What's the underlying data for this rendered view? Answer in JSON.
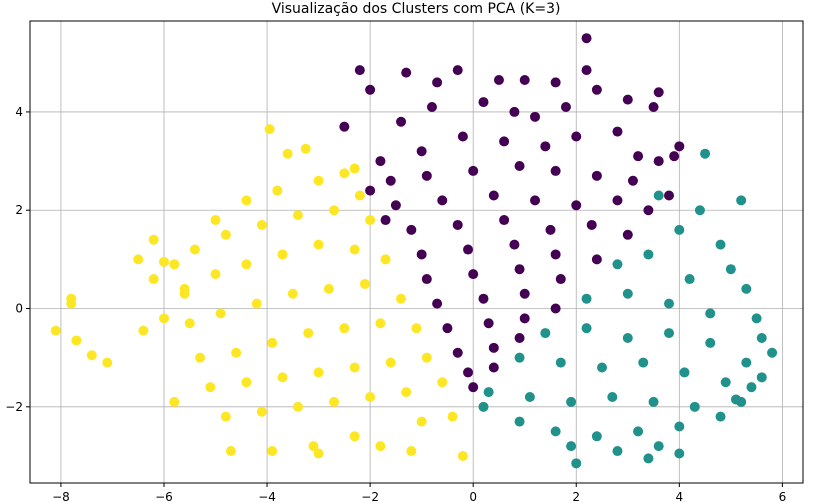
{
  "chart_data": {
    "type": "scatter",
    "title": "Visualização dos Clusters com PCA (K=3)",
    "xlabel": "",
    "ylabel": "",
    "xlim": [
      -8.6,
      6.4
    ],
    "ylim": [
      -3.55,
      5.85
    ],
    "x_ticks": [
      -8,
      -6,
      -4,
      -2,
      0,
      2,
      4,
      6
    ],
    "x_tick_labels": [
      "−8",
      "−6",
      "−4",
      "−2",
      "0",
      "2",
      "4",
      "6"
    ],
    "y_ticks": [
      -2,
      0,
      2,
      4
    ],
    "y_tick_labels": [
      "−2",
      "0",
      "2",
      "4"
    ],
    "grid": true,
    "series": [
      {
        "color": "#440154",
        "points": [
          [
            -2.2,
            4.85
          ],
          [
            -2.0,
            4.45
          ],
          [
            -1.3,
            4.8
          ],
          [
            -0.7,
            4.6
          ],
          [
            -0.3,
            4.85
          ],
          [
            0.5,
            4.65
          ],
          [
            1.0,
            4.65
          ],
          [
            1.6,
            4.6
          ],
          [
            2.2,
            4.85
          ],
          [
            2.2,
            5.5
          ],
          [
            -2.5,
            3.7
          ],
          [
            2.4,
            4.45
          ],
          [
            3.0,
            4.25
          ],
          [
            3.5,
            4.1
          ],
          [
            3.6,
            4.4
          ],
          [
            4.0,
            3.3
          ],
          [
            -1.4,
            3.8
          ],
          [
            -0.8,
            4.1
          ],
          [
            0.2,
            4.2
          ],
          [
            0.8,
            4.0
          ],
          [
            1.2,
            3.9
          ],
          [
            1.8,
            4.1
          ],
          [
            -1.8,
            3.0
          ],
          [
            -1.0,
            3.2
          ],
          [
            -0.2,
            3.5
          ],
          [
            0.6,
            3.4
          ],
          [
            1.4,
            3.3
          ],
          [
            2.0,
            3.5
          ],
          [
            2.8,
            3.6
          ],
          [
            3.2,
            3.1
          ],
          [
            3.6,
            3.0
          ],
          [
            -1.6,
            2.6
          ],
          [
            -0.9,
            2.7
          ],
          [
            0.0,
            2.8
          ],
          [
            0.9,
            2.9
          ],
          [
            1.6,
            2.8
          ],
          [
            2.4,
            2.7
          ],
          [
            3.1,
            2.6
          ],
          [
            -1.5,
            2.1
          ],
          [
            -0.6,
            2.2
          ],
          [
            0.4,
            2.3
          ],
          [
            1.2,
            2.2
          ],
          [
            2.0,
            2.1
          ],
          [
            2.8,
            2.2
          ],
          [
            3.4,
            2.0
          ],
          [
            -1.2,
            1.6
          ],
          [
            -0.3,
            1.7
          ],
          [
            0.6,
            1.8
          ],
          [
            1.5,
            1.6
          ],
          [
            2.3,
            1.7
          ],
          [
            3.0,
            1.5
          ],
          [
            -1.0,
            1.1
          ],
          [
            -0.1,
            1.2
          ],
          [
            0.8,
            1.3
          ],
          [
            1.6,
            1.1
          ],
          [
            2.4,
            1.0
          ],
          [
            -0.9,
            0.6
          ],
          [
            0.0,
            0.7
          ],
          [
            0.9,
            0.8
          ],
          [
            1.7,
            0.6
          ],
          [
            -0.7,
            0.1
          ],
          [
            0.2,
            0.2
          ],
          [
            1.0,
            0.3
          ],
          [
            1.6,
            0.0
          ],
          [
            -0.5,
            -0.4
          ],
          [
            0.3,
            -0.3
          ],
          [
            1.0,
            -0.2
          ],
          [
            -0.3,
            -0.9
          ],
          [
            0.4,
            -0.8
          ],
          [
            0.9,
            -0.6
          ],
          [
            -0.1,
            -1.3
          ],
          [
            0.4,
            -1.2
          ],
          [
            0.0,
            -1.6
          ],
          [
            -2.0,
            2.4
          ],
          [
            -1.7,
            1.8
          ],
          [
            3.8,
            2.3
          ],
          [
            3.9,
            3.1
          ]
        ]
      },
      {
        "color": "#21918c",
        "points": [
          [
            4.5,
            3.15
          ],
          [
            4.4,
            2.0
          ],
          [
            5.2,
            2.2
          ],
          [
            3.6,
            2.3
          ],
          [
            4.0,
            1.6
          ],
          [
            4.8,
            1.3
          ],
          [
            5.0,
            0.8
          ],
          [
            2.8,
            0.9
          ],
          [
            3.4,
            1.1
          ],
          [
            4.2,
            0.6
          ],
          [
            5.3,
            0.4
          ],
          [
            5.5,
            -0.2
          ],
          [
            2.2,
            0.2
          ],
          [
            3.0,
            0.3
          ],
          [
            3.8,
            0.1
          ],
          [
            4.6,
            -0.1
          ],
          [
            5.8,
            -0.9
          ],
          [
            5.6,
            -0.6
          ],
          [
            1.4,
            -0.5
          ],
          [
            2.2,
            -0.4
          ],
          [
            3.0,
            -0.6
          ],
          [
            3.8,
            -0.5
          ],
          [
            4.6,
            -0.7
          ],
          [
            5.3,
            -1.1
          ],
          [
            0.9,
            -1.0
          ],
          [
            1.7,
            -1.1
          ],
          [
            2.5,
            -1.2
          ],
          [
            3.3,
            -1.1
          ],
          [
            4.1,
            -1.3
          ],
          [
            4.9,
            -1.5
          ],
          [
            5.4,
            -1.6
          ],
          [
            0.3,
            -1.7
          ],
          [
            1.1,
            -1.8
          ],
          [
            1.9,
            -1.9
          ],
          [
            2.7,
            -1.8
          ],
          [
            3.5,
            -1.9
          ],
          [
            4.3,
            -2.0
          ],
          [
            5.2,
            -1.9
          ],
          [
            0.2,
            -2.0
          ],
          [
            0.9,
            -2.3
          ],
          [
            1.6,
            -2.5
          ],
          [
            2.4,
            -2.6
          ],
          [
            3.2,
            -2.5
          ],
          [
            4.0,
            -2.4
          ],
          [
            4.8,
            -2.2
          ],
          [
            1.9,
            -2.8
          ],
          [
            2.8,
            -2.9
          ],
          [
            3.6,
            -2.8
          ],
          [
            2.0,
            -3.15
          ],
          [
            3.4,
            -3.05
          ],
          [
            4.0,
            -2.95
          ],
          [
            5.1,
            -1.85
          ],
          [
            5.6,
            -1.4
          ]
        ]
      },
      {
        "color": "#fde725",
        "points": [
          [
            -8.1,
            -0.45
          ],
          [
            -7.8,
            0.2
          ],
          [
            -7.8,
            0.1
          ],
          [
            -7.7,
            -0.65
          ],
          [
            -7.4,
            -0.95
          ],
          [
            -7.1,
            -1.1
          ],
          [
            -6.5,
            1.0
          ],
          [
            -6.2,
            1.4
          ],
          [
            -6.4,
            -0.45
          ],
          [
            -6.2,
            0.6
          ],
          [
            -6.0,
            0.95
          ],
          [
            -6.0,
            -0.2
          ],
          [
            -5.8,
            0.9
          ],
          [
            -5.6,
            0.3
          ],
          [
            -5.8,
            -1.9
          ],
          [
            -3.95,
            3.65
          ],
          [
            -3.6,
            3.15
          ],
          [
            -3.25,
            3.25
          ],
          [
            -2.5,
            2.75
          ],
          [
            -2.3,
            2.85
          ],
          [
            -5.0,
            1.8
          ],
          [
            -4.4,
            2.2
          ],
          [
            -3.8,
            2.4
          ],
          [
            -3.0,
            2.6
          ],
          [
            -2.2,
            2.3
          ],
          [
            -5.4,
            1.2
          ],
          [
            -4.8,
            1.5
          ],
          [
            -4.1,
            1.7
          ],
          [
            -3.4,
            1.9
          ],
          [
            -2.7,
            2.0
          ],
          [
            -2.0,
            1.8
          ],
          [
            -5.6,
            0.4
          ],
          [
            -5.0,
            0.7
          ],
          [
            -4.4,
            0.9
          ],
          [
            -3.7,
            1.1
          ],
          [
            -3.0,
            1.3
          ],
          [
            -2.3,
            1.2
          ],
          [
            -1.7,
            1.0
          ],
          [
            -5.5,
            -0.3
          ],
          [
            -4.9,
            -0.1
          ],
          [
            -4.2,
            0.1
          ],
          [
            -3.5,
            0.3
          ],
          [
            -2.8,
            0.4
          ],
          [
            -2.1,
            0.5
          ],
          [
            -1.4,
            0.2
          ],
          [
            -5.3,
            -1.0
          ],
          [
            -4.6,
            -0.9
          ],
          [
            -3.9,
            -0.7
          ],
          [
            -3.2,
            -0.5
          ],
          [
            -2.5,
            -0.4
          ],
          [
            -1.8,
            -0.3
          ],
          [
            -1.1,
            -0.4
          ],
          [
            -5.1,
            -1.6
          ],
          [
            -4.4,
            -1.5
          ],
          [
            -3.7,
            -1.4
          ],
          [
            -3.0,
            -1.3
          ],
          [
            -2.3,
            -1.2
          ],
          [
            -1.6,
            -1.1
          ],
          [
            -0.9,
            -1.0
          ],
          [
            -4.8,
            -2.2
          ],
          [
            -4.1,
            -2.1
          ],
          [
            -3.4,
            -2.0
          ],
          [
            -2.7,
            -1.9
          ],
          [
            -2.0,
            -1.8
          ],
          [
            -1.3,
            -1.7
          ],
          [
            -0.6,
            -1.5
          ],
          [
            -4.7,
            -2.9
          ],
          [
            -3.9,
            -2.9
          ],
          [
            -3.1,
            -2.8
          ],
          [
            -3.0,
            -2.95
          ],
          [
            -2.3,
            -2.6
          ],
          [
            -1.8,
            -2.8
          ],
          [
            -1.2,
            -2.9
          ],
          [
            -0.2,
            -3.0
          ],
          [
            -0.4,
            -2.2
          ],
          [
            -1.0,
            -2.3
          ]
        ]
      }
    ]
  }
}
